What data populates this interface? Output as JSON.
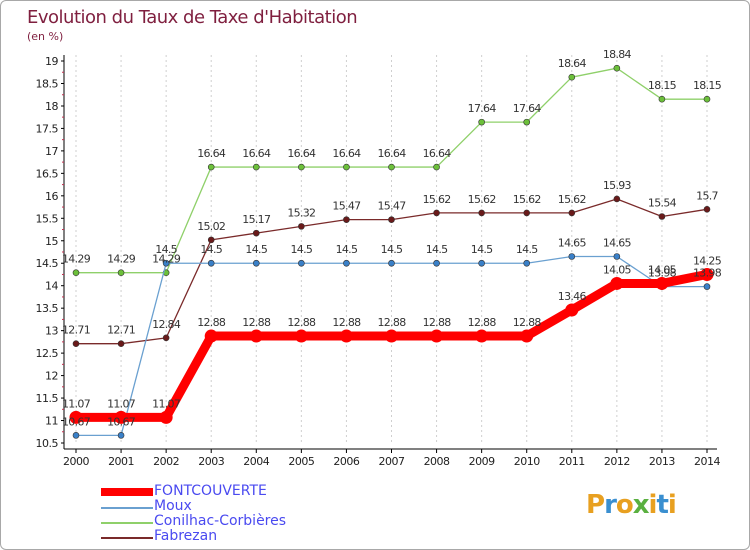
{
  "title": "Evolution du Taux de Taxe d'Habitation",
  "subtitle": "(en %)",
  "logo": {
    "text": "Proxiti",
    "colors": [
      "#e8a020",
      "#3a8fd0",
      "#e8a020",
      "#5ab040",
      "#e8a020",
      "#3a8fd0",
      "#e8a020"
    ]
  },
  "chart_data": {
    "type": "line",
    "x": [
      2000,
      2001,
      2002,
      2003,
      2004,
      2005,
      2006,
      2007,
      2008,
      2009,
      2010,
      2011,
      2012,
      2013,
      2014
    ],
    "ylim": [
      10.5,
      19
    ],
    "yticks": [
      10.5,
      11,
      11.5,
      12,
      12.5,
      13,
      13.5,
      14,
      14.5,
      15,
      15.5,
      16,
      16.5,
      17,
      17.5,
      18,
      18.5,
      19
    ],
    "ytick_labels": [
      "10.5",
      "11",
      "11.5",
      "12",
      "12.5",
      "13",
      "13.5",
      "14",
      "14.5",
      "15",
      "15.5",
      "16",
      "16.5",
      "17",
      "17.5",
      "18",
      "18.5",
      "19"
    ],
    "grid": "vertical",
    "legend_placement": "bottom-left",
    "series": [
      {
        "name": "Conilhac-Corbières",
        "color": "#8fd06a",
        "marker": "#6cc03a",
        "values": [
          14.29,
          14.29,
          14.29,
          16.64,
          16.64,
          16.64,
          16.64,
          16.64,
          16.64,
          17.64,
          17.64,
          18.64,
          18.84,
          18.15,
          18.15
        ],
        "labels": [
          "14.29",
          "14.29",
          "14.29",
          "16.64",
          "16.64",
          "16.64",
          "16.64",
          "16.64",
          "16.64",
          "17.64",
          "17.64",
          "18.64",
          "18.84",
          "18.15",
          "18.15"
        ]
      },
      {
        "name": "Fabrezan",
        "color": "#7a2a2a",
        "marker": "#6a1a1a",
        "values": [
          12.71,
          12.71,
          12.84,
          15.02,
          15.17,
          15.32,
          15.47,
          15.47,
          15.62,
          15.62,
          15.62,
          15.62,
          15.93,
          15.54,
          15.7
        ],
        "labels": [
          "12.71",
          "12.71",
          "12.84",
          "15.02",
          "15.17",
          "15.32",
          "15.47",
          "15.47",
          "15.62",
          "15.62",
          "15.62",
          "15.62",
          "15.93",
          "15.54",
          "15.7"
        ]
      },
      {
        "name": "Moux",
        "color": "#6aa0d0",
        "marker": "#3a80c8",
        "values": [
          10.67,
          10.67,
          14.5,
          14.5,
          14.5,
          14.5,
          14.5,
          14.5,
          14.5,
          14.5,
          14.5,
          14.65,
          14.65,
          13.98,
          13.98
        ],
        "labels": [
          "10.67",
          "10.67",
          "14.5",
          "14.5",
          "14.5",
          "14.5",
          "14.5",
          "14.5",
          "14.5",
          "14.5",
          "14.5",
          "14.65",
          "14.65",
          "13.98",
          "13.98"
        ]
      },
      {
        "name": "FONTCOUVERTE",
        "color": "#ff0000",
        "marker": "#ff0000",
        "values": [
          11.07,
          11.07,
          11.07,
          12.88,
          12.88,
          12.88,
          12.88,
          12.88,
          12.88,
          12.88,
          12.88,
          13.46,
          14.05,
          14.05,
          14.25
        ],
        "labels": [
          "11.07",
          "11.07",
          "11.07",
          "12.88",
          "12.88",
          "12.88",
          "12.88",
          "12.88",
          "12.88",
          "12.88",
          "12.88",
          "13.46",
          "14.05",
          "14.05",
          "14.25"
        ]
      }
    ],
    "legend": [
      "FONTCOUVERTE",
      "Moux",
      "Conilhac-Corbières",
      "Fabrezan"
    ]
  }
}
